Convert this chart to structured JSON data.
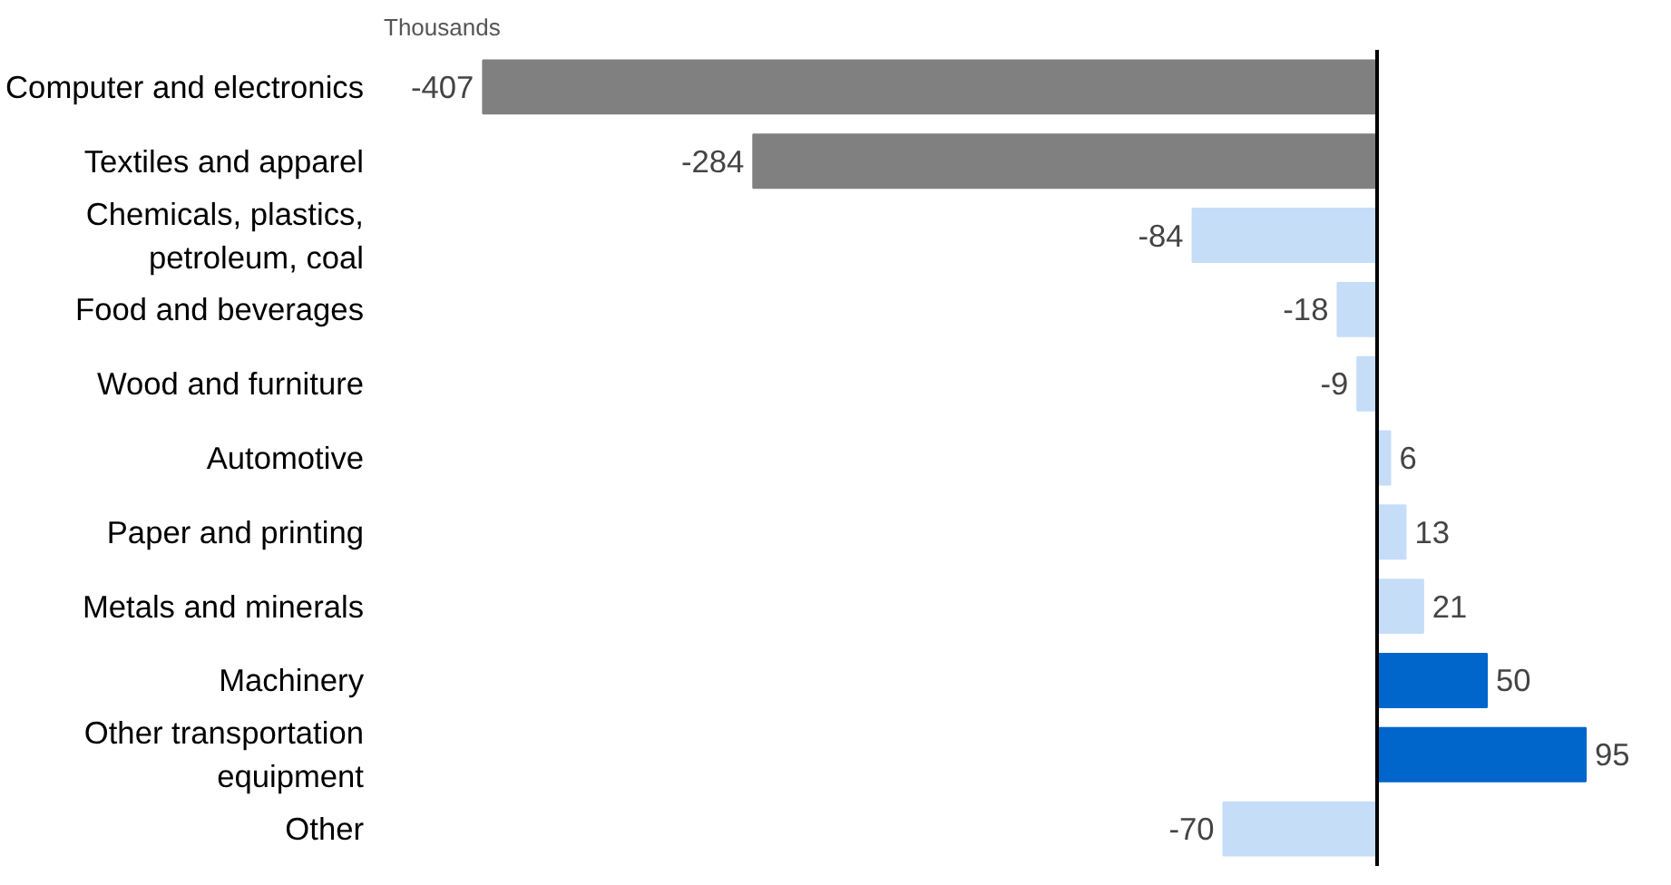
{
  "chart_data": {
    "type": "bar",
    "orientation": "horizontal",
    "subtitle": "Thousands",
    "categories": [
      "Computer and electronics",
      "Textiles and apparel",
      "Chemicals, plastics,\npetroleum, coal",
      "Food and beverages",
      "Wood and furniture",
      "Automotive",
      "Paper and printing",
      "Metals and minerals",
      "Machinery",
      "Other transportation\nequipment",
      "Other"
    ],
    "values": [
      -407,
      -284,
      -84,
      -18,
      -9,
      6,
      13,
      21,
      50,
      95,
      -70
    ],
    "colors": [
      "#808080",
      "#808080",
      "#c6ddf8",
      "#c6ddf8",
      "#c6ddf8",
      "#c6ddf8",
      "#c6ddf8",
      "#c6ddf8",
      "#0066cc",
      "#0066cc",
      "#c6ddf8"
    ],
    "data_labels": true,
    "grid": false
  }
}
